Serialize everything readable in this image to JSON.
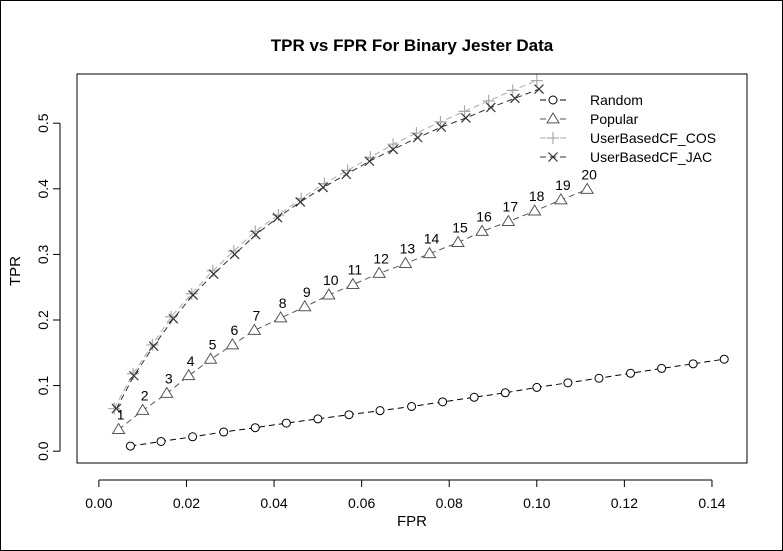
{
  "chart_data": {
    "type": "line",
    "title": "TPR vs FPR For Binary Jester Data",
    "xlabel": "FPR",
    "ylabel": "TPR",
    "xlim": [
      -0.005,
      0.148
    ],
    "ylim": [
      -0.018,
      0.575
    ],
    "xticks": [
      "0.00",
      "0.02",
      "0.04",
      "0.06",
      "0.08",
      "0.10",
      "0.12",
      "0.14"
    ],
    "yticks": [
      "0.0",
      "0.1",
      "0.2",
      "0.3",
      "0.4",
      "0.5"
    ],
    "legend_position": "top-right",
    "grid": false,
    "series": [
      {
        "name": "Random",
        "marker": "circle",
        "color": "#000000",
        "x": [
          0.0072,
          0.0142,
          0.0214,
          0.0285,
          0.0357,
          0.0428,
          0.05,
          0.0571,
          0.0642,
          0.0714,
          0.0785,
          0.0857,
          0.0928,
          0.1,
          0.1071,
          0.1142,
          0.1214,
          0.1285,
          0.1357,
          0.1428
        ],
        "y": [
          0.0078,
          0.0148,
          0.022,
          0.0292,
          0.0358,
          0.0428,
          0.0492,
          0.0556,
          0.0618,
          0.0682,
          0.0752,
          0.0822,
          0.089,
          0.0972,
          0.1042,
          0.1112,
          0.1188,
          0.1262,
          0.1332,
          0.1402
        ]
      },
      {
        "name": "Popular",
        "marker": "triangle",
        "color": "#555555",
        "x": [
          0.0045,
          0.01,
          0.0155,
          0.0205,
          0.0255,
          0.0305,
          0.0355,
          0.0415,
          0.047,
          0.0525,
          0.058,
          0.064,
          0.07,
          0.0755,
          0.082,
          0.0875,
          0.0935,
          0.0995,
          0.1055,
          0.1115
        ],
        "y": [
          0.033,
          0.062,
          0.088,
          0.115,
          0.14,
          0.162,
          0.184,
          0.203,
          0.22,
          0.238,
          0.254,
          0.271,
          0.286,
          0.301,
          0.318,
          0.335,
          0.35,
          0.366,
          0.383,
          0.399
        ]
      },
      {
        "name": "UserBasedCF_COS",
        "marker": "plus",
        "color": "#aaaaaa",
        "x": [
          0.0035,
          0.0078,
          0.0122,
          0.0165,
          0.0212,
          0.026,
          0.0308,
          0.0357,
          0.041,
          0.0462,
          0.0515,
          0.0568,
          0.062,
          0.0672,
          0.0725,
          0.078,
          0.0835,
          0.089,
          0.0945,
          0.1
        ],
        "y": [
          0.065,
          0.118,
          0.162,
          0.205,
          0.24,
          0.275,
          0.305,
          0.335,
          0.36,
          0.385,
          0.408,
          0.428,
          0.448,
          0.468,
          0.485,
          0.502,
          0.518,
          0.534,
          0.55,
          0.565
        ]
      },
      {
        "name": "UserBasedCF_JAC",
        "marker": "cross",
        "color": "#333333",
        "x": [
          0.004,
          0.008,
          0.0125,
          0.017,
          0.0215,
          0.0262,
          0.031,
          0.0358,
          0.0408,
          0.046,
          0.0512,
          0.0565,
          0.0618,
          0.0672,
          0.0728,
          0.0782,
          0.0838,
          0.0895,
          0.095,
          0.1005
        ],
        "y": [
          0.065,
          0.115,
          0.16,
          0.202,
          0.238,
          0.27,
          0.3,
          0.33,
          0.356,
          0.38,
          0.402,
          0.422,
          0.442,
          0.46,
          0.478,
          0.494,
          0.508,
          0.524,
          0.538,
          0.552
        ]
      }
    ],
    "annotations": {
      "labels": [
        "1",
        "2",
        "3",
        "4",
        "5",
        "6",
        "7",
        "8",
        "9",
        "10",
        "11",
        "12",
        "13",
        "14",
        "15",
        "16",
        "17",
        "18",
        "19",
        "20"
      ],
      "attached_to": "Popular"
    }
  }
}
